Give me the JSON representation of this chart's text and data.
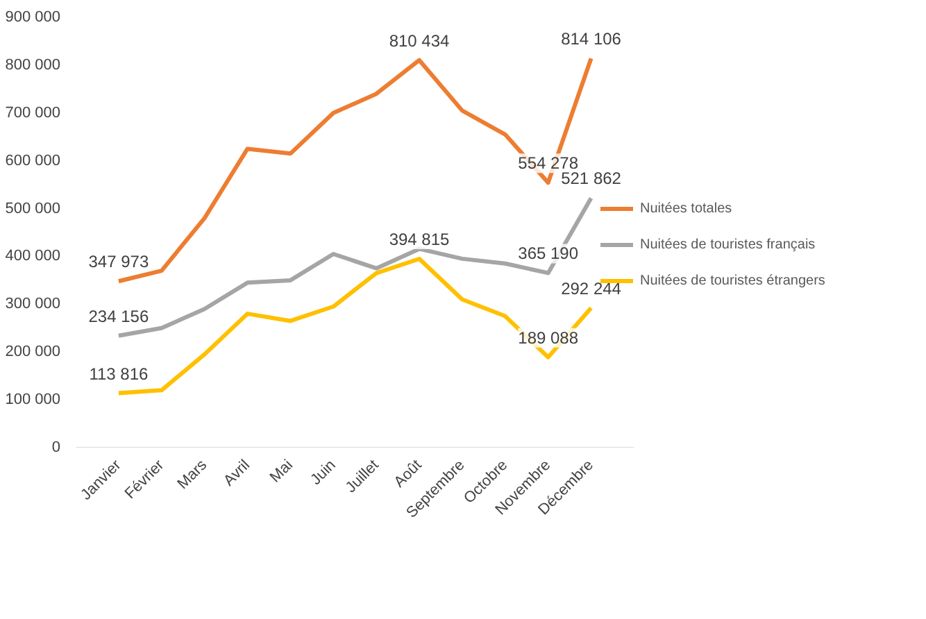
{
  "chart_data": {
    "type": "line",
    "categories": [
      "Janvier",
      "Février",
      "Mars",
      "Avril",
      "Mai",
      "Juin",
      "Juillet",
      "Août",
      "Septembre",
      "Octobre",
      "Novembre",
      "Décembre"
    ],
    "ylim": [
      0,
      900000
    ],
    "yticks": [
      {
        "value": 0,
        "label": "0"
      },
      {
        "value": 100000,
        "label": "100 000"
      },
      {
        "value": 200000,
        "label": "200 000"
      },
      {
        "value": 300000,
        "label": "300 000"
      },
      {
        "value": 400000,
        "label": "400 000"
      },
      {
        "value": 500000,
        "label": "500 000"
      },
      {
        "value": 600000,
        "label": "600 000"
      },
      {
        "value": 700000,
        "label": "700 000"
      },
      {
        "value": 800000,
        "label": "800 000"
      },
      {
        "value": 900000,
        "label": "900 000"
      }
    ],
    "grid": false,
    "legend": "right",
    "marker": "none",
    "line_style": "solid",
    "series": [
      {
        "name": "Nuitées totales",
        "color": "#ed7d31",
        "values": [
          347973,
          370000,
          480000,
          625000,
          615000,
          700000,
          740000,
          810434,
          705000,
          655000,
          554278,
          814106
        ],
        "value_labels": [
          "347 973",
          null,
          null,
          null,
          null,
          null,
          null,
          "810 434",
          null,
          null,
          "554 278",
          "814 106"
        ]
      },
      {
        "name": "Nuitées de touristes français",
        "color": "#a5a5a5",
        "values": [
          234156,
          250000,
          290000,
          345000,
          350000,
          405000,
          375000,
          415619,
          395000,
          385000,
          365190,
          521862
        ],
        "value_labels": [
          "234 156",
          null,
          null,
          null,
          null,
          null,
          null,
          null,
          null,
          null,
          "365 190",
          "521 862"
        ]
      },
      {
        "name": "Nuitées de touristes étrangers",
        "color": "#ffc000",
        "values": [
          113816,
          120000,
          195000,
          280000,
          265000,
          295000,
          365000,
          394815,
          310000,
          275000,
          189088,
          292244
        ],
        "value_labels": [
          "113 816",
          null,
          null,
          null,
          null,
          null,
          null,
          "394 815",
          null,
          null,
          "189 088",
          "292 244"
        ]
      }
    ]
  }
}
